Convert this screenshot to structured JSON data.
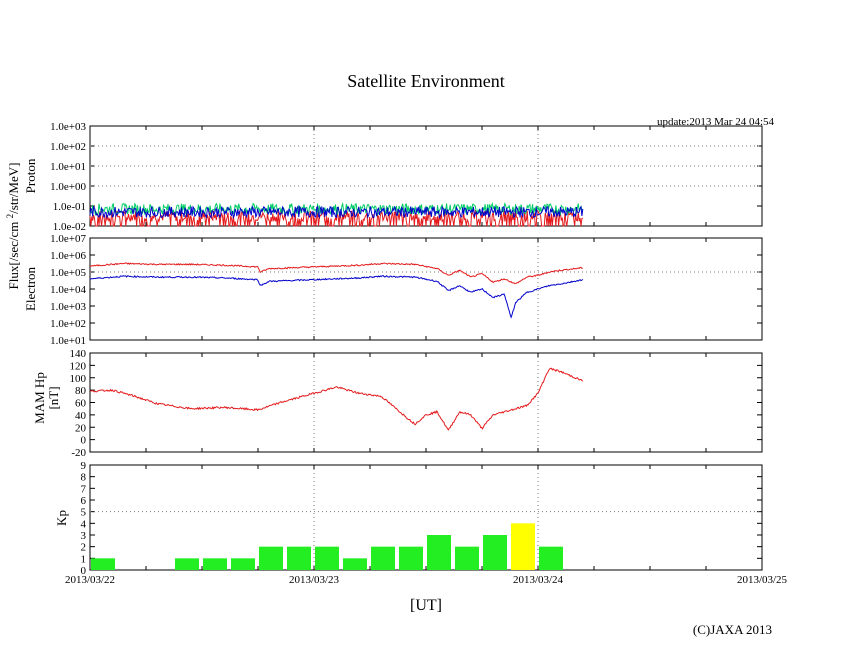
{
  "chart_data": {
    "type": "line",
    "title": "Satellite Environment",
    "update": "update:2013 Mar 24 04:54",
    "copyright": "(C)JAXA 2013",
    "xlabel": "[UT]",
    "x_ticks": [
      "2013/03/22",
      "2013/03/23",
      "2013/03/24",
      "2013/03/25"
    ],
    "x_range_days": [
      0,
      3
    ],
    "flux_label": "Flux[/sec/cm2/str/MeV]",
    "colors": {
      "red": "#e41a1c",
      "blue": "#0000cc",
      "green": "#00cc66",
      "kp_green": "#22ee22",
      "kp_yellow": "#ffff00"
    },
    "panels": [
      {
        "name": "proton",
        "ylabel": "Proton",
        "scale": "log",
        "ylim_exp": [
          -2,
          3
        ],
        "ticks": [
          "1.0e-02",
          "1.0e-01",
          "1.0e+00",
          "1.0e+01",
          "1.0e+02",
          "1.0e+03"
        ],
        "series": [
          {
            "name": "proton-red",
            "color": "red",
            "x": [
              0,
              0.5,
              1.0,
              1.5,
              2.2
            ],
            "log_values": [
              -1.5,
              -1.5,
              -1.5,
              -1.5,
              -1.5
            ]
          },
          {
            "name": "proton-green",
            "color": "green",
            "x": [
              0,
              0.5,
              1.0,
              1.5,
              2.2
            ],
            "log_values": [
              -1.15,
              -1.15,
              -1.15,
              -1.15,
              -1.15
            ]
          },
          {
            "name": "proton-blue",
            "color": "blue",
            "x": [
              0,
              0.5,
              1.0,
              1.5,
              2.2
            ],
            "log_values": [
              -1.3,
              -1.3,
              -1.3,
              -1.3,
              -1.3
            ]
          }
        ]
      },
      {
        "name": "electron",
        "ylabel": "Electron",
        "scale": "log",
        "ylim_exp": [
          1,
          7
        ],
        "ticks": [
          "1.0e+01",
          "1.0e+02",
          "1.0e+03",
          "1.0e+04",
          "1.0e+05",
          "1.0e+06",
          "1.0e+07"
        ],
        "series": [
          {
            "name": "electron-red",
            "color": "red",
            "x": [
              0,
              0.15,
              0.3,
              0.45,
              0.6,
              0.75,
              0.76,
              0.8,
              0.9,
              1.0,
              1.1,
              1.2,
              1.3,
              1.45,
              1.55,
              1.6,
              1.65,
              1.7,
              1.75,
              1.8,
              1.85,
              1.9,
              1.95,
              2.0,
              2.05,
              2.1,
              2.2
            ],
            "log_values": [
              5.35,
              5.5,
              5.45,
              5.45,
              5.4,
              5.3,
              5.0,
              5.2,
              5.25,
              5.3,
              5.35,
              5.4,
              5.5,
              5.45,
              5.2,
              4.8,
              5.1,
              4.7,
              4.9,
              4.4,
              4.6,
              4.3,
              4.7,
              4.8,
              5.0,
              5.1,
              5.25
            ]
          },
          {
            "name": "electron-blue",
            "color": "blue",
            "x": [
              0,
              0.15,
              0.3,
              0.45,
              0.6,
              0.75,
              0.76,
              0.8,
              0.9,
              1.0,
              1.1,
              1.2,
              1.3,
              1.45,
              1.55,
              1.6,
              1.65,
              1.7,
              1.75,
              1.8,
              1.85,
              1.88,
              1.9,
              1.95,
              2.0,
              2.05,
              2.1,
              2.2
            ],
            "log_values": [
              4.6,
              4.75,
              4.7,
              4.7,
              4.65,
              4.55,
              4.2,
              4.45,
              4.5,
              4.55,
              4.6,
              4.65,
              4.75,
              4.7,
              4.45,
              3.9,
              4.2,
              3.8,
              4.0,
              3.5,
              3.7,
              2.3,
              3.2,
              3.8,
              4.0,
              4.2,
              4.3,
              4.55
            ]
          }
        ]
      },
      {
        "name": "hp",
        "ylabel": "MAM Hp",
        "ylabel2": "[nT]",
        "scale": "linear",
        "ylim": [
          -20,
          140
        ],
        "ticks": [
          "-20",
          "0",
          "20",
          "40",
          "60",
          "80",
          "100",
          "120",
          "140"
        ],
        "series": [
          {
            "name": "hp-red",
            "color": "red",
            "x": [
              0,
              0.1,
              0.2,
              0.3,
              0.45,
              0.6,
              0.75,
              0.85,
              0.95,
              1.05,
              1.1,
              1.2,
              1.3,
              1.35,
              1.4,
              1.45,
              1.5,
              1.55,
              1.6,
              1.65,
              1.7,
              1.75,
              1.8,
              1.85,
              1.9,
              1.95,
              2.0,
              2.05,
              2.1,
              2.2
            ],
            "values": [
              78,
              80,
              70,
              58,
              50,
              52,
              48,
              60,
              70,
              80,
              85,
              75,
              70,
              55,
              40,
              25,
              40,
              45,
              15,
              45,
              40,
              18,
              40,
              45,
              50,
              55,
              75,
              115,
              110,
              95
            ]
          }
        ]
      },
      {
        "name": "kp",
        "ylabel": "Kp",
        "scale": "linear",
        "ylim": [
          0,
          9
        ],
        "ticks": [
          "0",
          "1",
          "2",
          "3",
          "4",
          "5",
          "6",
          "7",
          "8",
          "9"
        ],
        "bars": [
          {
            "x": 0.0,
            "value": 1,
            "color": "kp_green"
          },
          {
            "x": 0.375,
            "value": 1,
            "color": "kp_green"
          },
          {
            "x": 0.5,
            "value": 1,
            "color": "kp_green"
          },
          {
            "x": 0.625,
            "value": 1,
            "color": "kp_green"
          },
          {
            "x": 0.75,
            "value": 2,
            "color": "kp_green"
          },
          {
            "x": 0.875,
            "value": 2,
            "color": "kp_green"
          },
          {
            "x": 1.0,
            "value": 2,
            "color": "kp_green"
          },
          {
            "x": 1.125,
            "value": 1,
            "color": "kp_green"
          },
          {
            "x": 1.25,
            "value": 2,
            "color": "kp_green"
          },
          {
            "x": 1.375,
            "value": 2,
            "color": "kp_green"
          },
          {
            "x": 1.5,
            "value": 3,
            "color": "kp_green"
          },
          {
            "x": 1.625,
            "value": 2,
            "color": "kp_green"
          },
          {
            "x": 1.75,
            "value": 3,
            "color": "kp_green"
          },
          {
            "x": 1.875,
            "value": 4,
            "color": "kp_yellow"
          },
          {
            "x": 2.0,
            "value": 2,
            "color": "kp_green"
          }
        ]
      }
    ]
  }
}
